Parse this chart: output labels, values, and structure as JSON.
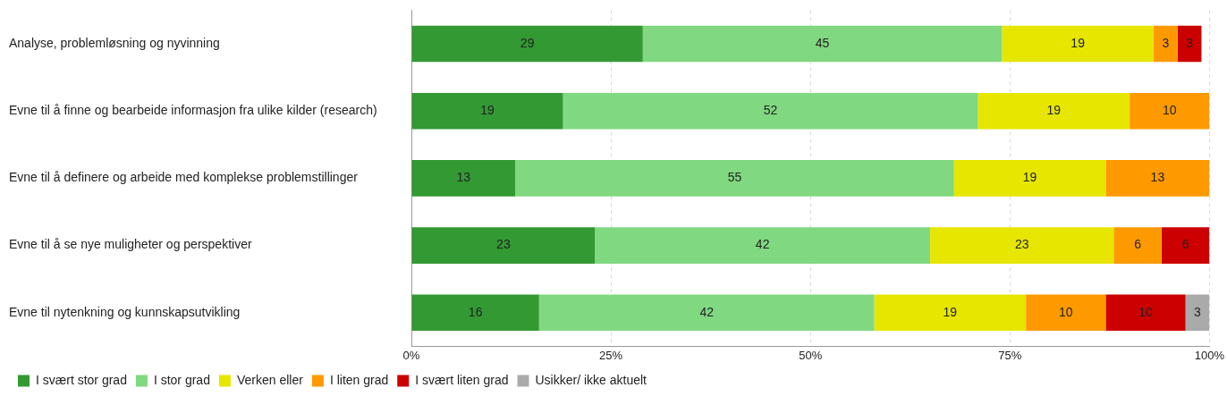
{
  "chart_data": {
    "type": "bar",
    "orientation": "horizontal",
    "stacked": true,
    "data_labels": true,
    "grid": "x",
    "legend": "bottom",
    "categories": [
      "Analyse, problemløsning og nyvinning",
      "Evne til å finne og bearbeide informasjon fra ulike kilder (research)",
      "Evne til å definere og arbeide med komplekse problemstillinger",
      "Evne til å se nye muligheter og perspektiver",
      "Evne til nytenkning og kunnskapsutvikling"
    ],
    "xlim": [
      0,
      100
    ],
    "xticks": [
      {
        "value": 0,
        "label": "0%"
      },
      {
        "value": 25,
        "label": "25%"
      },
      {
        "value": 50,
        "label": "50%"
      },
      {
        "value": 75,
        "label": "75%"
      },
      {
        "value": 100,
        "label": "100%"
      }
    ],
    "series": [
      {
        "name": "I svært stor grad",
        "color": "#339933",
        "values": [
          29,
          19,
          13,
          23,
          16
        ]
      },
      {
        "name": "I stor grad",
        "color": "#80d880",
        "values": [
          45,
          52,
          55,
          42,
          42
        ]
      },
      {
        "name": "Verken eller",
        "color": "#e6e600",
        "values": [
          19,
          19,
          19,
          23,
          19
        ]
      },
      {
        "name": "I liten grad",
        "color": "#ff9900",
        "values": [
          3,
          10,
          13,
          6,
          10
        ]
      },
      {
        "name": "I svært liten grad",
        "color": "#cc0000",
        "values": [
          3,
          null,
          null,
          6,
          10
        ]
      },
      {
        "name": "Usikker/ ikke aktuelt",
        "color": "#aaaaaa",
        "values": [
          null,
          null,
          null,
          null,
          3
        ]
      }
    ]
  }
}
